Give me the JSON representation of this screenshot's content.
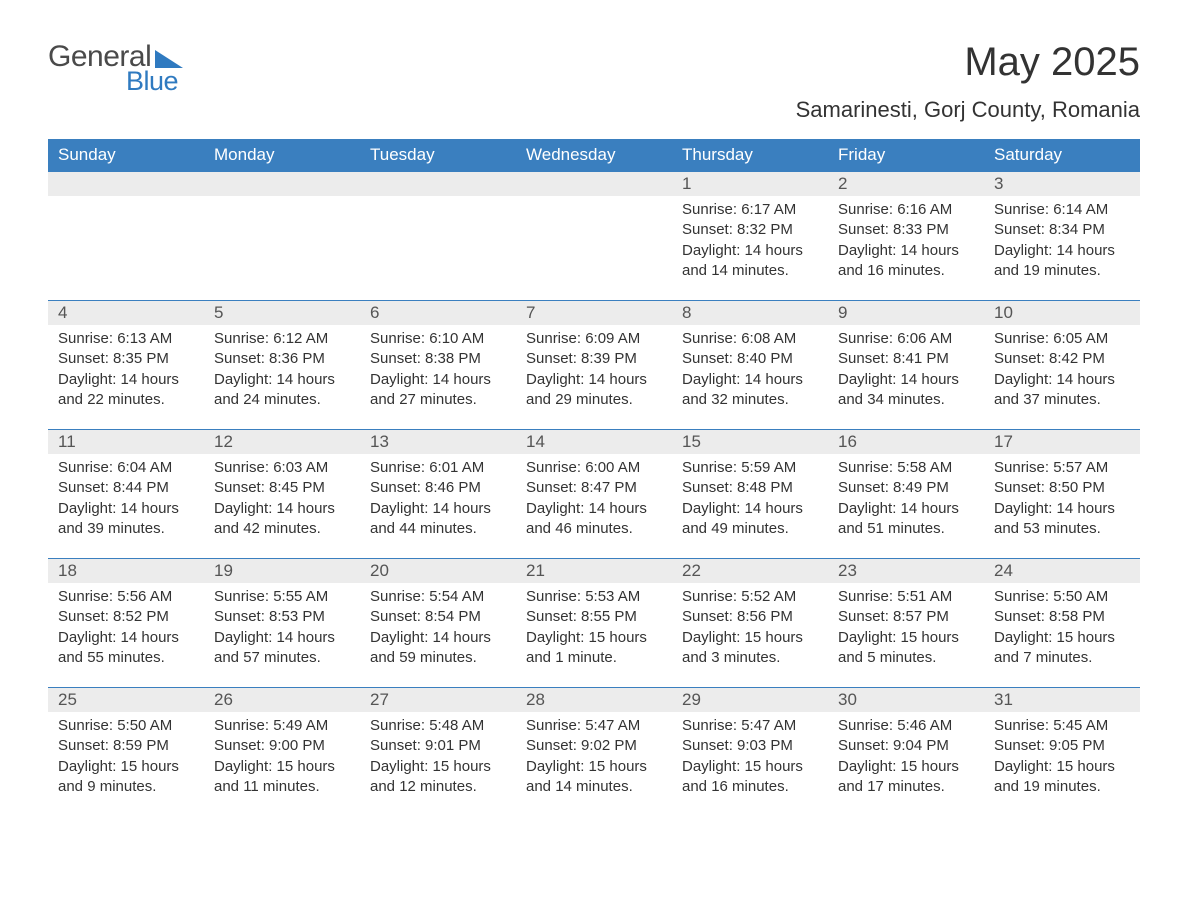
{
  "logo": {
    "word1": "General",
    "word2": "Blue",
    "accent_color": "#2f7ac0",
    "text_color": "#4a4a4a"
  },
  "title": "May 2025",
  "location": "Samarinesti, Gorj County, Romania",
  "colors": {
    "header_bg": "#3a7fbf",
    "header_text": "#ffffff",
    "daynum_bg": "#ececec",
    "row_border": "#3a7fbf",
    "body_text": "#333333",
    "page_bg": "#ffffff"
  },
  "fonts": {
    "title_size": 40,
    "location_size": 22,
    "weekday_size": 17,
    "body_size": 15
  },
  "weekdays": [
    "Sunday",
    "Monday",
    "Tuesday",
    "Wednesday",
    "Thursday",
    "Friday",
    "Saturday"
  ],
  "layout": {
    "first_day_column": 4,
    "weeks": 5
  },
  "days": [
    {
      "n": 1,
      "sunrise": "6:17 AM",
      "sunset": "8:32 PM",
      "daylight": "14 hours and 14 minutes."
    },
    {
      "n": 2,
      "sunrise": "6:16 AM",
      "sunset": "8:33 PM",
      "daylight": "14 hours and 16 minutes."
    },
    {
      "n": 3,
      "sunrise": "6:14 AM",
      "sunset": "8:34 PM",
      "daylight": "14 hours and 19 minutes."
    },
    {
      "n": 4,
      "sunrise": "6:13 AM",
      "sunset": "8:35 PM",
      "daylight": "14 hours and 22 minutes."
    },
    {
      "n": 5,
      "sunrise": "6:12 AM",
      "sunset": "8:36 PM",
      "daylight": "14 hours and 24 minutes."
    },
    {
      "n": 6,
      "sunrise": "6:10 AM",
      "sunset": "8:38 PM",
      "daylight": "14 hours and 27 minutes."
    },
    {
      "n": 7,
      "sunrise": "6:09 AM",
      "sunset": "8:39 PM",
      "daylight": "14 hours and 29 minutes."
    },
    {
      "n": 8,
      "sunrise": "6:08 AM",
      "sunset": "8:40 PM",
      "daylight": "14 hours and 32 minutes."
    },
    {
      "n": 9,
      "sunrise": "6:06 AM",
      "sunset": "8:41 PM",
      "daylight": "14 hours and 34 minutes."
    },
    {
      "n": 10,
      "sunrise": "6:05 AM",
      "sunset": "8:42 PM",
      "daylight": "14 hours and 37 minutes."
    },
    {
      "n": 11,
      "sunrise": "6:04 AM",
      "sunset": "8:44 PM",
      "daylight": "14 hours and 39 minutes."
    },
    {
      "n": 12,
      "sunrise": "6:03 AM",
      "sunset": "8:45 PM",
      "daylight": "14 hours and 42 minutes."
    },
    {
      "n": 13,
      "sunrise": "6:01 AM",
      "sunset": "8:46 PM",
      "daylight": "14 hours and 44 minutes."
    },
    {
      "n": 14,
      "sunrise": "6:00 AM",
      "sunset": "8:47 PM",
      "daylight": "14 hours and 46 minutes."
    },
    {
      "n": 15,
      "sunrise": "5:59 AM",
      "sunset": "8:48 PM",
      "daylight": "14 hours and 49 minutes."
    },
    {
      "n": 16,
      "sunrise": "5:58 AM",
      "sunset": "8:49 PM",
      "daylight": "14 hours and 51 minutes."
    },
    {
      "n": 17,
      "sunrise": "5:57 AM",
      "sunset": "8:50 PM",
      "daylight": "14 hours and 53 minutes."
    },
    {
      "n": 18,
      "sunrise": "5:56 AM",
      "sunset": "8:52 PM",
      "daylight": "14 hours and 55 minutes."
    },
    {
      "n": 19,
      "sunrise": "5:55 AM",
      "sunset": "8:53 PM",
      "daylight": "14 hours and 57 minutes."
    },
    {
      "n": 20,
      "sunrise": "5:54 AM",
      "sunset": "8:54 PM",
      "daylight": "14 hours and 59 minutes."
    },
    {
      "n": 21,
      "sunrise": "5:53 AM",
      "sunset": "8:55 PM",
      "daylight": "15 hours and 1 minute."
    },
    {
      "n": 22,
      "sunrise": "5:52 AM",
      "sunset": "8:56 PM",
      "daylight": "15 hours and 3 minutes."
    },
    {
      "n": 23,
      "sunrise": "5:51 AM",
      "sunset": "8:57 PM",
      "daylight": "15 hours and 5 minutes."
    },
    {
      "n": 24,
      "sunrise": "5:50 AM",
      "sunset": "8:58 PM",
      "daylight": "15 hours and 7 minutes."
    },
    {
      "n": 25,
      "sunrise": "5:50 AM",
      "sunset": "8:59 PM",
      "daylight": "15 hours and 9 minutes."
    },
    {
      "n": 26,
      "sunrise": "5:49 AM",
      "sunset": "9:00 PM",
      "daylight": "15 hours and 11 minutes."
    },
    {
      "n": 27,
      "sunrise": "5:48 AM",
      "sunset": "9:01 PM",
      "daylight": "15 hours and 12 minutes."
    },
    {
      "n": 28,
      "sunrise": "5:47 AM",
      "sunset": "9:02 PM",
      "daylight": "15 hours and 14 minutes."
    },
    {
      "n": 29,
      "sunrise": "5:47 AM",
      "sunset": "9:03 PM",
      "daylight": "15 hours and 16 minutes."
    },
    {
      "n": 30,
      "sunrise": "5:46 AM",
      "sunset": "9:04 PM",
      "daylight": "15 hours and 17 minutes."
    },
    {
      "n": 31,
      "sunrise": "5:45 AM",
      "sunset": "9:05 PM",
      "daylight": "15 hours and 19 minutes."
    }
  ],
  "labels": {
    "sunrise": "Sunrise:",
    "sunset": "Sunset:",
    "daylight": "Daylight:"
  }
}
